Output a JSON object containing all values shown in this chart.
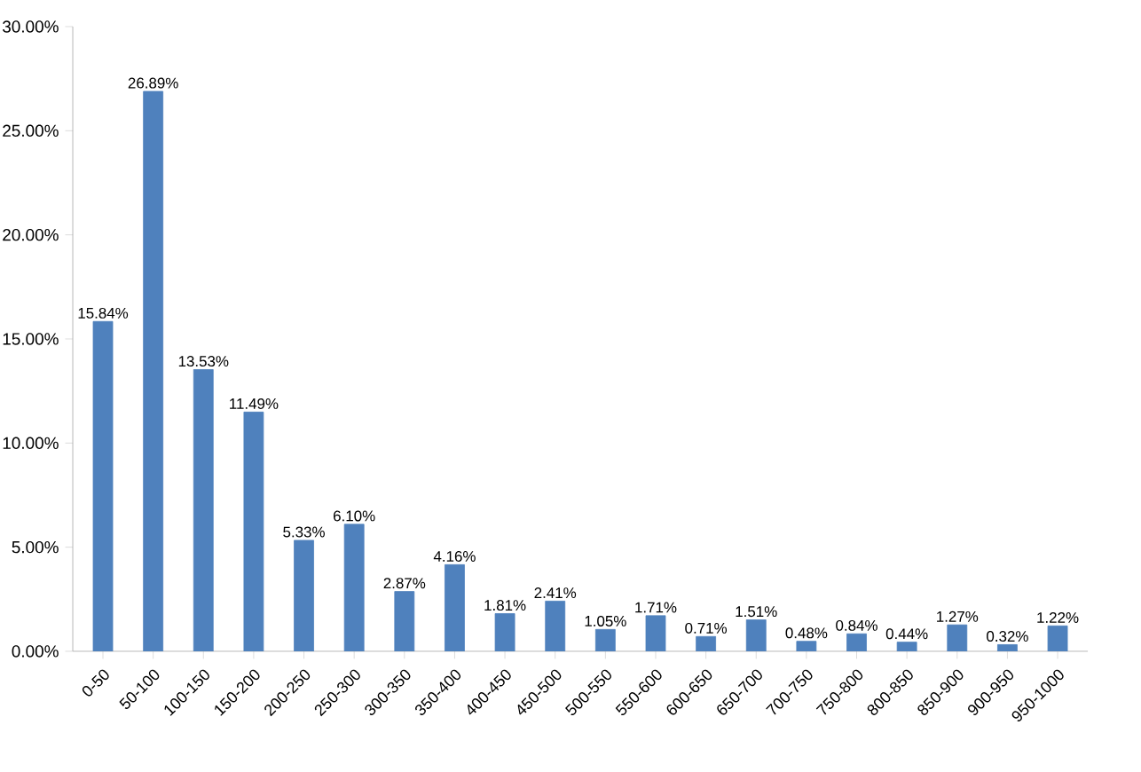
{
  "chart_data": {
    "type": "bar",
    "categories": [
      "0-50",
      "50-100",
      "100-150",
      "150-200",
      "200-250",
      "250-300",
      "300-350",
      "350-400",
      "400-450",
      "450-500",
      "500-550",
      "550-600",
      "600-650",
      "650-700",
      "700-750",
      "750-800",
      "800-850",
      "850-900",
      "900-950",
      "950-1000"
    ],
    "values": [
      15.84,
      26.89,
      13.53,
      11.49,
      5.33,
      6.1,
      2.87,
      4.16,
      1.81,
      2.41,
      1.05,
      1.71,
      0.71,
      1.51,
      0.48,
      0.84,
      0.44,
      1.27,
      0.32,
      1.22
    ],
    "value_labels": [
      "15.84%",
      "26.89%",
      "13.53%",
      "11.49%",
      "5.33%",
      "6.10%",
      "2.87%",
      "4.16%",
      "1.81%",
      "2.41%",
      "1.05%",
      "1.71%",
      "0.71%",
      "1.51%",
      "0.48%",
      "0.84%",
      "0.44%",
      "1.27%",
      "0.32%",
      "1.22%"
    ],
    "color": "#4f81bd",
    "ylim": [
      0,
      30
    ],
    "yticks": [
      {
        "value": 0,
        "label": "0.00%"
      },
      {
        "value": 5,
        "label": "5.00%"
      },
      {
        "value": 10,
        "label": "10.00%"
      },
      {
        "value": 15,
        "label": "15.00%"
      },
      {
        "value": 20,
        "label": "20.00%"
      },
      {
        "value": 25,
        "label": "25.00%"
      },
      {
        "value": 30,
        "label": "30.00%"
      }
    ],
    "grid": false
  }
}
